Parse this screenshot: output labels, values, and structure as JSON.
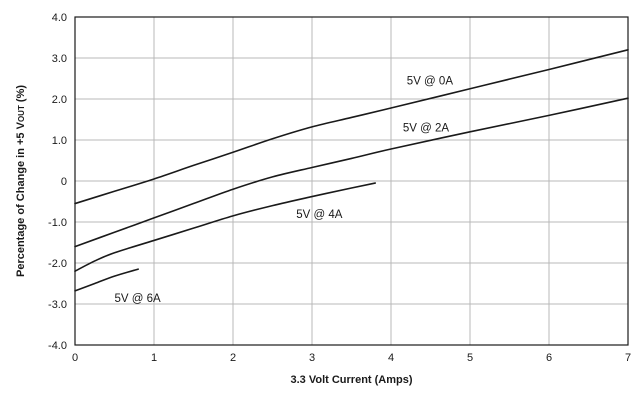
{
  "chart_data": {
    "type": "line",
    "xlabel": "3.3 Volt Current (Amps)",
    "ylabel": "Percentage of Change in +5 V",
    "ylabel_sub": "OUT",
    "ylabel_suffix": " (%)",
    "xlim": [
      0,
      7
    ],
    "ylim": [
      -4,
      4
    ],
    "x_ticks": [
      "0",
      "1",
      "2",
      "3",
      "4",
      "5",
      "6",
      "7"
    ],
    "y_ticks": [
      "4.0",
      "3.0",
      "2.0",
      "1.0",
      "0",
      "-1.0",
      "-2.0",
      "-3.0",
      "-4.0"
    ],
    "grid": true,
    "series": [
      {
        "name": "5V @ 0A",
        "x": [
          0,
          0.5,
          1,
          1.5,
          2,
          2.5,
          3,
          3.5,
          4,
          5,
          6,
          7
        ],
        "y": [
          -0.55,
          -0.25,
          0.05,
          0.38,
          0.7,
          1.03,
          1.32,
          1.55,
          1.78,
          2.25,
          2.72,
          3.2
        ],
        "label_x": 4.2,
        "label_y": 2.45
      },
      {
        "name": "5V @ 2A",
        "x": [
          0,
          0.5,
          1,
          1.5,
          2,
          2.5,
          3,
          3.5,
          4,
          5,
          6,
          7
        ],
        "y": [
          -1.6,
          -1.25,
          -0.9,
          -0.55,
          -0.2,
          0.1,
          0.33,
          0.55,
          0.78,
          1.2,
          1.6,
          2.02
        ],
        "label_x": 4.15,
        "label_y": 1.3
      },
      {
        "name": "5V @ 4A",
        "x": [
          0,
          0.25,
          0.5,
          1,
          1.5,
          2,
          2.5,
          3,
          3.5,
          3.8
        ],
        "y": [
          -2.2,
          -1.95,
          -1.75,
          -1.45,
          -1.15,
          -0.85,
          -0.6,
          -0.38,
          -0.17,
          -0.05
        ],
        "label_x": 2.8,
        "label_y": -0.8
      },
      {
        "name": "5V @ 6A",
        "x": [
          0,
          0.25,
          0.5,
          0.8
        ],
        "y": [
          -2.68,
          -2.5,
          -2.32,
          -2.15
        ],
        "label_x": 0.5,
        "label_y": -2.85
      }
    ]
  }
}
